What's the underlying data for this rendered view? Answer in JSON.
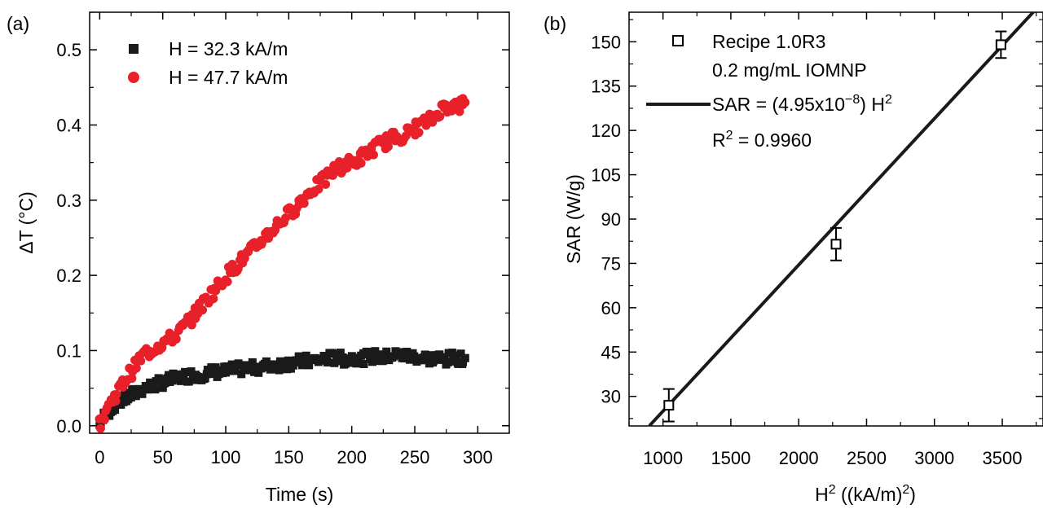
{
  "chart_data": [
    {
      "type": "scatter",
      "panel_label": "(a)",
      "xlabel": "Time (s)",
      "ylabel": "ΔT (°C)",
      "xlim": [
        -8,
        325
      ],
      "ylim": [
        -0.01,
        0.55
      ],
      "xticks": [
        0,
        50,
        100,
        150,
        200,
        250,
        300
      ],
      "yticks": [
        0.0,
        0.1,
        0.2,
        0.3,
        0.4,
        0.5
      ],
      "ytick_labels": [
        "0.0",
        "0.1",
        "0.2",
        "0.3",
        "0.4",
        "0.5"
      ],
      "legend_position": "top-left",
      "series": [
        {
          "name": "H = 32.3 kA/m",
          "marker": "square",
          "color": "#1a1a1a",
          "x": [
            0,
            5,
            10,
            15,
            20,
            25,
            30,
            35,
            40,
            45,
            50,
            55,
            60,
            65,
            70,
            75,
            80,
            85,
            90,
            95,
            100,
            105,
            110,
            115,
            120,
            125,
            130,
            135,
            140,
            145,
            150,
            155,
            160,
            165,
            170,
            175,
            180,
            185,
            190,
            195,
            200,
            205,
            210,
            215,
            220,
            225,
            230,
            235,
            240,
            245,
            250,
            255,
            260,
            265,
            270,
            275,
            280,
            285,
            290
          ],
          "y": [
            0.0,
            0.015,
            0.025,
            0.032,
            0.036,
            0.04,
            0.045,
            0.05,
            0.052,
            0.055,
            0.058,
            0.06,
            0.062,
            0.065,
            0.066,
            0.068,
            0.068,
            0.07,
            0.071,
            0.072,
            0.072,
            0.074,
            0.075,
            0.076,
            0.076,
            0.078,
            0.078,
            0.08,
            0.081,
            0.082,
            0.083,
            0.085,
            0.085,
            0.086,
            0.086,
            0.088,
            0.09,
            0.09,
            0.09,
            0.088,
            0.09,
            0.091,
            0.09,
            0.092,
            0.092,
            0.09,
            0.093,
            0.094,
            0.094,
            0.092,
            0.093,
            0.09,
            0.09,
            0.088,
            0.09,
            0.088,
            0.09,
            0.09,
            0.09
          ]
        },
        {
          "name": "H = 47.7 kA/m",
          "marker": "circle",
          "color": "#e8202a",
          "x": [
            0,
            5,
            10,
            15,
            20,
            25,
            30,
            35,
            40,
            45,
            50,
            55,
            60,
            65,
            70,
            75,
            80,
            85,
            90,
            95,
            100,
            105,
            110,
            115,
            120,
            125,
            130,
            135,
            140,
            145,
            150,
            155,
            160,
            165,
            170,
            175,
            180,
            185,
            190,
            195,
            200,
            205,
            210,
            215,
            220,
            225,
            230,
            235,
            240,
            245,
            250,
            255,
            260,
            265,
            270,
            275,
            280,
            285,
            290
          ],
          "y": [
            0.0,
            0.02,
            0.035,
            0.048,
            0.06,
            0.072,
            0.085,
            0.095,
            0.1,
            0.105,
            0.11,
            0.115,
            0.12,
            0.128,
            0.138,
            0.148,
            0.158,
            0.168,
            0.178,
            0.188,
            0.198,
            0.208,
            0.216,
            0.224,
            0.232,
            0.24,
            0.25,
            0.258,
            0.266,
            0.274,
            0.282,
            0.29,
            0.3,
            0.308,
            0.316,
            0.322,
            0.33,
            0.338,
            0.344,
            0.348,
            0.35,
            0.354,
            0.36,
            0.366,
            0.372,
            0.376,
            0.38,
            0.384,
            0.386,
            0.39,
            0.395,
            0.4,
            0.405,
            0.41,
            0.42,
            0.425,
            0.425,
            0.425,
            0.43
          ]
        }
      ]
    },
    {
      "type": "scatter",
      "panel_label": "(b)",
      "xlabel_main": "H",
      "xlabel_sup": "2",
      "xlabel_rest1": " ((kA/m)",
      "xlabel_sup2": "2",
      "xlabel_rest2": ")",
      "ylabel": "SAR (W/g)",
      "xlim": [
        750,
        3800
      ],
      "ylim": [
        20,
        160
      ],
      "xticks": [
        1000,
        1500,
        2000,
        2500,
        3000,
        3500
      ],
      "yticks": [
        30,
        45,
        60,
        75,
        90,
        105,
        120,
        135,
        150
      ],
      "legend_position": "top-left",
      "series": [
        {
          "name": "Recipe 1.0R3",
          "marker": "open-square",
          "x": [
            1043,
            2275,
            3490
          ],
          "y": [
            27,
            81.5,
            149
          ],
          "err": [
            5.5,
            5.5,
            4.5
          ]
        }
      ],
      "fit": {
        "slope": 0.0495,
        "intercept": -24.5
      },
      "legend": {
        "line1": "Recipe 1.0R3",
        "line2": "0.2 mg/mL IOMNP",
        "fit_pre": "SAR = (4.95x10",
        "fit_exp": "−8",
        "fit_mid": ") H",
        "fit_sup": "2",
        "r2_base": "R",
        "r2_sup": "2",
        "r2_rest": " = 0.9960"
      }
    }
  ]
}
